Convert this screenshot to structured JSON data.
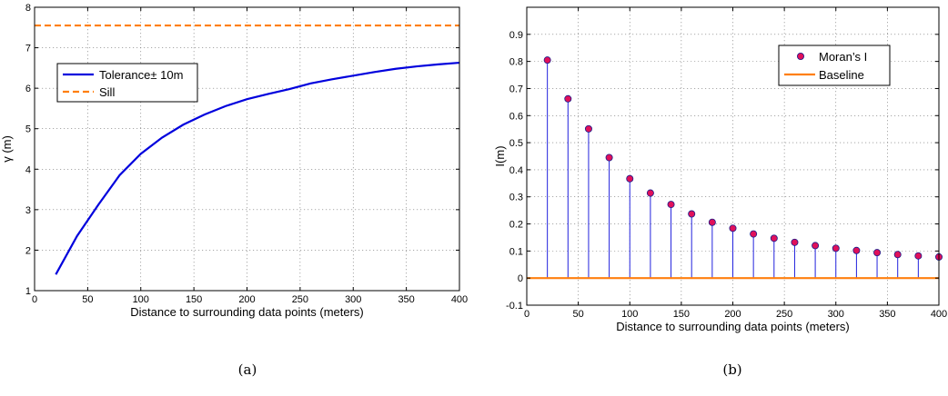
{
  "chart_data": [
    {
      "type": "line",
      "caption": "(a)",
      "xlabel": "Distance to surrounding data points (meters)",
      "ylabel": "γ (m)",
      "xlim": [
        0,
        400
      ],
      "ylim": [
        1,
        8
      ],
      "xticks": [
        0,
        50,
        100,
        150,
        200,
        250,
        300,
        350,
        400
      ],
      "yticks": [
        1,
        2,
        3,
        4,
        5,
        6,
        7,
        8
      ],
      "grid": true,
      "legend_position": "upper-left",
      "series": [
        {
          "name": "Tolerance± 10m",
          "color": "#0000dd",
          "style": "solid",
          "x": [
            20,
            40,
            60,
            80,
            100,
            120,
            140,
            160,
            180,
            200,
            220,
            240,
            260,
            280,
            300,
            320,
            340,
            360,
            380,
            400
          ],
          "y": [
            1.4,
            2.35,
            3.12,
            3.85,
            4.38,
            4.78,
            5.1,
            5.35,
            5.56,
            5.73,
            5.86,
            5.98,
            6.12,
            6.22,
            6.31,
            6.4,
            6.48,
            6.54,
            6.59,
            6.63
          ]
        },
        {
          "name": "Sill",
          "color": "#ff7f0e",
          "style": "dashed",
          "x": [
            0,
            400
          ],
          "y": [
            7.55,
            7.55
          ]
        }
      ]
    },
    {
      "type": "stem",
      "caption": "(b)",
      "xlabel": "Distance to surrounding data points (meters)",
      "ylabel": "I(m)",
      "xlim": [
        0,
        400
      ],
      "ylim": [
        -0.1,
        1.0
      ],
      "xticks": [
        0,
        50,
        100,
        150,
        200,
        250,
        300,
        350,
        400
      ],
      "yticks": [
        -0.1,
        0,
        0.1,
        0.2,
        0.3,
        0.4,
        0.5,
        0.6,
        0.7,
        0.8,
        0.9
      ],
      "grid": true,
      "legend_position": "upper-right",
      "series": [
        {
          "name": "Moran’s I",
          "marker_color": "#e0105a",
          "stem_color": "#2222dd",
          "x": [
            20,
            40,
            60,
            80,
            100,
            120,
            140,
            160,
            180,
            200,
            220,
            240,
            260,
            280,
            300,
            320,
            340,
            360,
            380,
            400
          ],
          "y": [
            0.805,
            0.662,
            0.551,
            0.445,
            0.367,
            0.314,
            0.272,
            0.237,
            0.206,
            0.184,
            0.163,
            0.147,
            0.132,
            0.12,
            0.11,
            0.102,
            0.094,
            0.087,
            0.082,
            0.078
          ]
        },
        {
          "name": "Baseline",
          "color": "#ff7f0e",
          "x": [
            0,
            400
          ],
          "y": [
            0,
            0
          ]
        }
      ]
    }
  ]
}
